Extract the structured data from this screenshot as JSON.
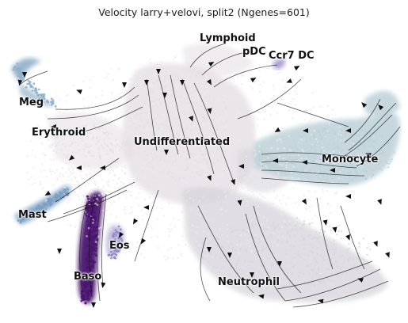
{
  "title": "Velocity larry+velovi, split2 (Ngenes=601)",
  "clusters": [
    {
      "key": "lymphoid",
      "label": "Lymphoid"
    },
    {
      "key": "pdc",
      "label": "pDC"
    },
    {
      "key": "ccr7",
      "label": "Ccr7 DC"
    },
    {
      "key": "meg",
      "label": "Meg"
    },
    {
      "key": "erythroid",
      "label": "Erythroid"
    },
    {
      "key": "undiff",
      "label": "Undifferentiated"
    },
    {
      "key": "monocyte",
      "label": "Monocyte"
    },
    {
      "key": "mast",
      "label": "Mast"
    },
    {
      "key": "eos",
      "label": "Eos"
    },
    {
      "key": "baso",
      "label": "Baso"
    },
    {
      "key": "neutrophil",
      "label": "Neutrophil"
    }
  ],
  "colors": {
    "undifferentiated": "#e4dde2",
    "neutrophil": "#d6d4db",
    "monocyte": "#b9cfd6",
    "meg": "#8fb0c8",
    "mast": "#7a9fc2",
    "baso": "#4a1470",
    "eos": "#8f86c4",
    "ccr7_dc": "#9a86c8",
    "background_points": "#eceaee",
    "streamlines": "#111111"
  }
}
